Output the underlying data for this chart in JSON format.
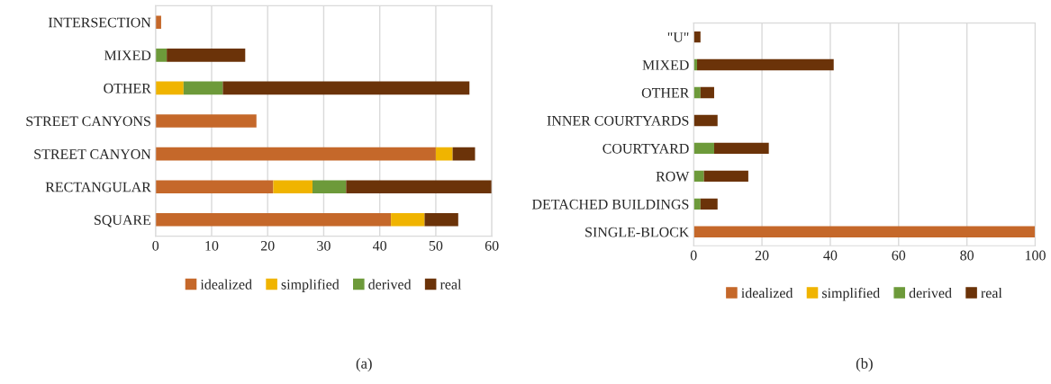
{
  "chart_data": [
    {
      "type": "bar",
      "orientation": "horizontal",
      "stacked": true,
      "categories": [
        "INTERSECTION",
        "MIXED",
        "OTHER",
        "STREET CANYONS",
        "STREET CANYON",
        "RECTANGULAR",
        "SQUARE"
      ],
      "series": [
        {
          "name": "idealized",
          "color": "#c5682a",
          "values": [
            1,
            null,
            null,
            18,
            50,
            21,
            42
          ]
        },
        {
          "name": "simplified",
          "color": "#f0b400",
          "values": [
            null,
            null,
            5,
            null,
            3,
            7,
            6
          ]
        },
        {
          "name": "derived",
          "color": "#6d9a3a",
          "values": [
            null,
            2,
            7,
            null,
            null,
            6,
            null
          ]
        },
        {
          "name": "real",
          "color": "#6b3309",
          "values": [
            null,
            14,
            44,
            null,
            4,
            26,
            6
          ]
        }
      ],
      "xlim": [
        0,
        60
      ],
      "xticks": [
        0,
        10,
        20,
        30,
        40,
        50,
        60
      ],
      "grid": "x",
      "legend": "bottom",
      "annotations": [
        "(a)"
      ]
    },
    {
      "type": "bar",
      "orientation": "horizontal",
      "stacked": true,
      "categories": [
        "\"U\"",
        "MIXED",
        "OTHER",
        "INNER COURTYARDS",
        "COURTYARD",
        "ROW",
        "DETACHED BUILDINGS",
        "SINGLE-BLOCK"
      ],
      "series": [
        {
          "name": "idealized",
          "color": "#c5682a",
          "values": [
            null,
            null,
            null,
            null,
            null,
            null,
            null,
            100
          ]
        },
        {
          "name": "simplified",
          "color": "#f0b400",
          "values": [
            null,
            null,
            null,
            null,
            null,
            null,
            null,
            null
          ]
        },
        {
          "name": "derived",
          "color": "#6d9a3a",
          "values": [
            null,
            1,
            2,
            null,
            6,
            3,
            2,
            null
          ]
        },
        {
          "name": "real",
          "color": "#6b3309",
          "values": [
            2,
            40,
            4,
            7,
            16,
            13,
            5,
            null
          ]
        }
      ],
      "xlim": [
        0,
        100
      ],
      "xticks": [
        0,
        20,
        40,
        60,
        80,
        100
      ],
      "grid": "x",
      "legend": "bottom",
      "annotations": [
        "(b)"
      ]
    }
  ]
}
